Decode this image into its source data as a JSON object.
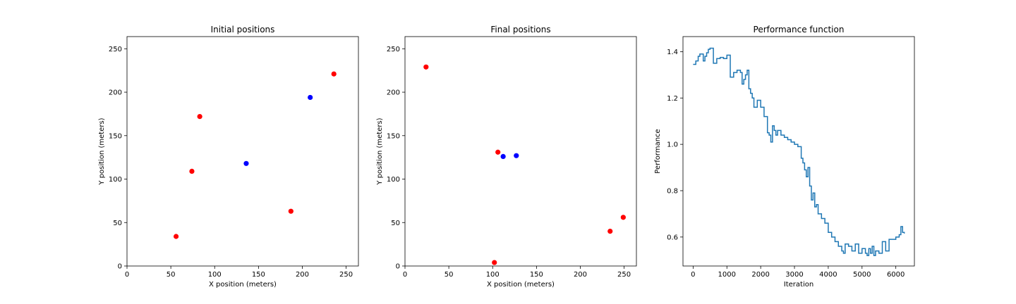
{
  "chart_data": [
    {
      "type": "scatter",
      "title": "Initial positions",
      "xlabel": "X position (meters)",
      "ylabel": "Y position (meters)",
      "xlim": [
        0,
        264
      ],
      "ylim": [
        0,
        264
      ],
      "xticks": [
        0,
        50,
        100,
        150,
        200,
        250
      ],
      "yticks": [
        0,
        50,
        100,
        150,
        200,
        250
      ],
      "series": [
        {
          "name": "red",
          "color": "#ff0000",
          "points": [
            [
              56,
              34
            ],
            [
              74,
              109
            ],
            [
              83,
              172
            ],
            [
              187,
              63
            ],
            [
              236,
              221
            ]
          ]
        },
        {
          "name": "blue",
          "color": "#0000ff",
          "points": [
            [
              136,
              118
            ],
            [
              209,
              194
            ]
          ]
        }
      ]
    },
    {
      "type": "scatter",
      "title": "Final positions",
      "xlabel": "X position (meters)",
      "ylabel": "Y position (meters)",
      "xlim": [
        0,
        264
      ],
      "ylim": [
        0,
        264
      ],
      "xticks": [
        0,
        50,
        100,
        150,
        200,
        250
      ],
      "yticks": [
        0,
        50,
        100,
        150,
        200,
        250
      ],
      "series": [
        {
          "name": "red",
          "color": "#ff0000",
          "points": [
            [
              24,
              229
            ],
            [
              102,
              4
            ],
            [
              106,
              131
            ],
            [
              234,
              40
            ],
            [
              249,
              56
            ]
          ]
        },
        {
          "name": "blue",
          "color": "#0000ff",
          "points": [
            [
              112,
              126
            ],
            [
              127,
              127
            ]
          ]
        }
      ]
    },
    {
      "type": "line",
      "step": true,
      "title": "Performance function",
      "xlabel": "Iteration",
      "ylabel": "Performance",
      "xlim": [
        -300,
        6550
      ],
      "ylim": [
        0.475,
        1.465
      ],
      "xticks": [
        0,
        1000,
        2000,
        3000,
        4000,
        5000,
        6000
      ],
      "yticks": [
        0.6,
        0.8,
        1.0,
        1.2,
        1.4
      ],
      "ytick_labels": [
        "0.6",
        "0.8",
        "1.0",
        "1.2",
        "1.4"
      ],
      "series": [
        {
          "name": "performance",
          "color": "#1f77b4",
          "x": [
            0,
            80,
            150,
            200,
            300,
            350,
            400,
            450,
            500,
            600,
            700,
            800,
            900,
            1000,
            1100,
            1200,
            1300,
            1400,
            1450,
            1500,
            1550,
            1600,
            1650,
            1700,
            1750,
            1800,
            1900,
            2000,
            2100,
            2200,
            2250,
            2300,
            2350,
            2400,
            2450,
            2500,
            2600,
            2700,
            2800,
            2900,
            3000,
            3100,
            3200,
            3250,
            3300,
            3350,
            3400,
            3450,
            3500,
            3550,
            3600,
            3650,
            3700,
            3800,
            3900,
            4000,
            4100,
            4200,
            4300,
            4400,
            4450,
            4500,
            4600,
            4700,
            4800,
            4900,
            5000,
            5100,
            5150,
            5200,
            5250,
            5300,
            5350,
            5400,
            5500,
            5600,
            5700,
            5800,
            6000,
            6100,
            6150,
            6200,
            6250
          ],
          "y": [
            1.345,
            1.36,
            1.38,
            1.39,
            1.36,
            1.38,
            1.395,
            1.41,
            1.415,
            1.35,
            1.37,
            1.375,
            1.37,
            1.385,
            1.29,
            1.31,
            1.32,
            1.31,
            1.26,
            1.28,
            1.3,
            1.32,
            1.24,
            1.22,
            1.2,
            1.16,
            1.19,
            1.16,
            1.12,
            1.05,
            1.04,
            1.01,
            1.08,
            1.06,
            1.04,
            1.06,
            1.04,
            1.03,
            1.02,
            1.01,
            1.0,
            0.99,
            0.94,
            0.92,
            0.89,
            0.86,
            0.9,
            0.82,
            0.76,
            0.79,
            0.73,
            0.74,
            0.7,
            0.68,
            0.66,
            0.62,
            0.6,
            0.58,
            0.56,
            0.54,
            0.53,
            0.57,
            0.56,
            0.54,
            0.57,
            0.53,
            0.55,
            0.53,
            0.52,
            0.55,
            0.53,
            0.56,
            0.52,
            0.54,
            0.53,
            0.58,
            0.54,
            0.59,
            0.6,
            0.61,
            0.645,
            0.62,
            0.615
          ]
        }
      ]
    }
  ]
}
